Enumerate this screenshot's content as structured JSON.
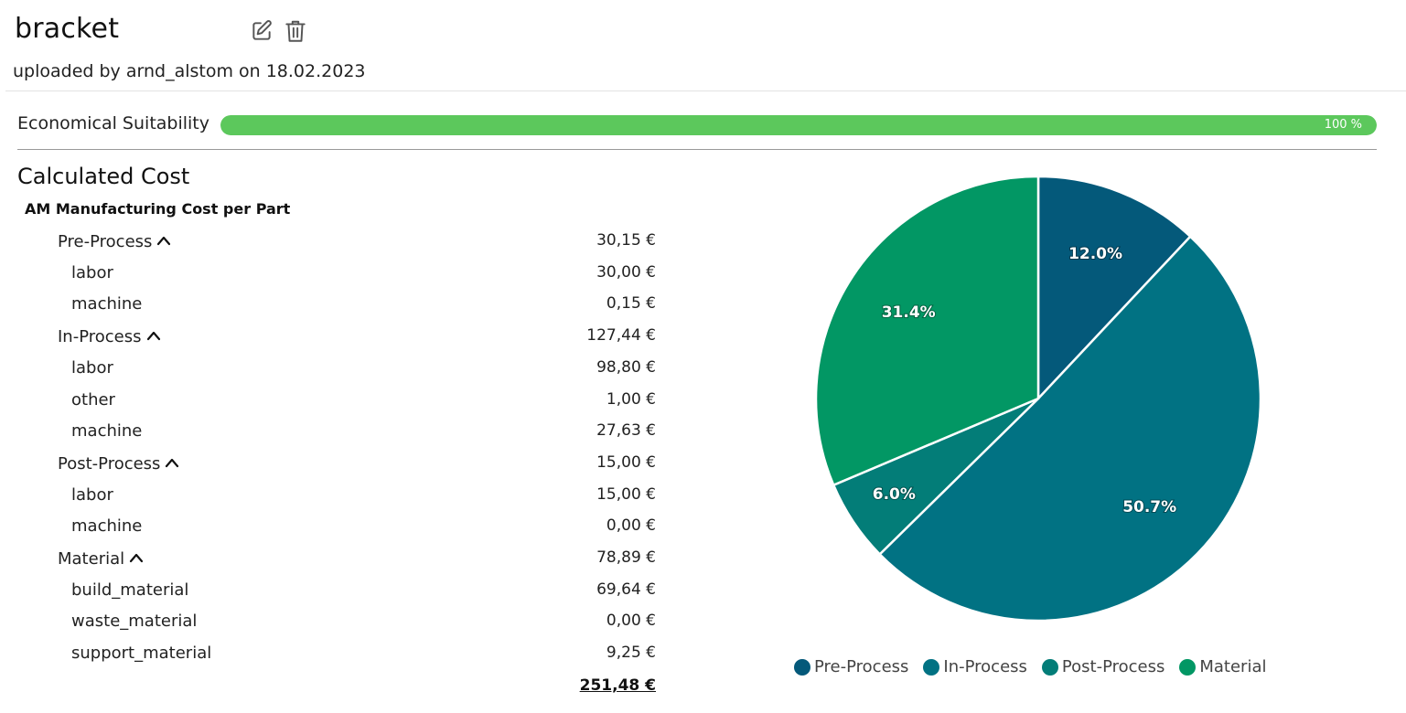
{
  "header": {
    "title": "bracket",
    "edit_icon": "edit-icon",
    "delete_icon": "trash-icon",
    "uploaded": "uploaded by arnd_alstom on 18.02.2023"
  },
  "suitability": {
    "label": "Economical Suitability",
    "percent": 100,
    "percent_text": "100 %",
    "color": "#5cc85c"
  },
  "cost": {
    "section_title": "Calculated Cost",
    "subsection_title": "AM Manufacturing Cost per Part",
    "rows": [
      {
        "label": "Pre-Process",
        "value": "30,15 €",
        "group": true
      },
      {
        "label": "labor",
        "value": "30,00 €",
        "group": false
      },
      {
        "label": "machine",
        "value": "0,15 €",
        "group": false
      },
      {
        "label": "In-Process",
        "value": "127,44 €",
        "group": true
      },
      {
        "label": "labor",
        "value": "98,80 €",
        "group": false
      },
      {
        "label": "other",
        "value": "1,00 €",
        "group": false
      },
      {
        "label": "machine",
        "value": "27,63 €",
        "group": false
      },
      {
        "label": "Post-Process",
        "value": "15,00 €",
        "group": true
      },
      {
        "label": "labor",
        "value": "15,00 €",
        "group": false
      },
      {
        "label": "machine",
        "value": "0,00 €",
        "group": false
      },
      {
        "label": "Material",
        "value": "78,89 €",
        "group": true
      },
      {
        "label": "build_material",
        "value": "69,64 €",
        "group": false
      },
      {
        "label": "waste_material",
        "value": "0,00 €",
        "group": false
      },
      {
        "label": "support_material",
        "value": "9,25 €",
        "group": false
      }
    ],
    "total": "251,48 €"
  },
  "chart_data": {
    "type": "pie",
    "labels": [
      "Pre-Process",
      "In-Process",
      "Post-Process",
      "Material"
    ],
    "values": [
      12.0,
      50.7,
      6.0,
      31.4
    ],
    "value_labels": [
      "12.0%",
      "50.7%",
      "6.0%",
      "31.4%"
    ],
    "colors": [
      "#04597a",
      "#017283",
      "#037d78",
      "#029764"
    ],
    "legend_position": "bottom"
  }
}
